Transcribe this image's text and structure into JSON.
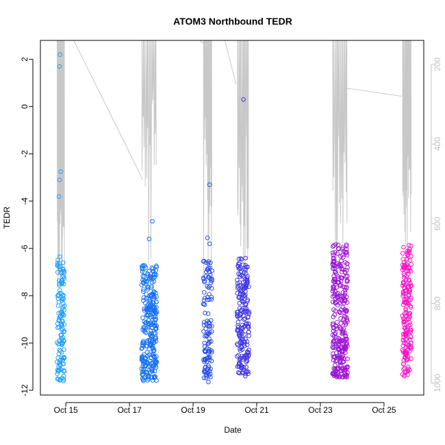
{
  "chart_data": {
    "type": "scatter",
    "title": "ATOM3 Northbound TEDR",
    "xlabel": "Date",
    "ylabel": "TEDR",
    "y2label": "",
    "x_tick_labels": [
      "Oct 15",
      "Oct 17",
      "Oct 19",
      "Oct 21",
      "Oct 23",
      "Oct 25"
    ],
    "x_tick_days": [
      15,
      17,
      19,
      21,
      23,
      25
    ],
    "xlim_days": [
      14.2,
      26.25
    ],
    "ylim": [
      -12.2,
      2.8
    ],
    "y_ticks": [
      -12,
      -10,
      -8,
      -6,
      -4,
      -2,
      0,
      2
    ],
    "y2lim": [
      1030,
      140
    ],
    "y2_ticks": [
      200,
      400,
      600,
      800,
      1000
    ],
    "grid": false,
    "legend": "none",
    "colors": {
      "gradient_start": "#1EA0FF",
      "gradient_mid1": "#1464F0",
      "gradient_mid2": "#5A14DC",
      "gradient_end": "#FF14C8",
      "pressure_line": "#c8c8c8",
      "axis": "#000000",
      "axis_right": "#c0c0c0"
    },
    "series": [
      {
        "role": "TEDR points",
        "clusters": [
          {
            "day_range": [
              14.72,
              14.96
            ],
            "n": 130,
            "y_range": [
              -11.7,
              -6.3
            ],
            "outliers": [
              [
                14.82,
                2.2
              ],
              [
                14.8,
                1.7
              ],
              [
                14.84,
                -2.75
              ],
              [
                14.8,
                -3.1
              ],
              [
                14.78,
                -3.8
              ]
            ]
          },
          {
            "day_range": [
              17.38,
              17.86
            ],
            "n": 280,
            "y_range": [
              -11.6,
              -6.7
            ],
            "outliers": [
              [
                17.72,
                -4.85
              ],
              [
                17.62,
                -5.6
              ]
            ]
          },
          {
            "day_range": [
              19.32,
              19.6
            ],
            "n": 120,
            "y_range": [
              -11.5,
              -6.5
            ],
            "outliers": [
              [
                19.52,
                -3.3
              ],
              [
                19.45,
                -5.55
              ],
              [
                19.52,
                -5.8
              ],
              [
                19.48,
                -11.65
              ]
            ]
          },
          {
            "day_range": [
              20.38,
              20.76
            ],
            "n": 200,
            "y_range": [
              -11.4,
              -6.4
            ],
            "outliers": [
              [
                20.58,
                0.3
              ]
            ]
          },
          {
            "day_range": [
              23.38,
              23.86
            ],
            "n": 300,
            "y_range": [
              -11.45,
              -5.8
            ],
            "outliers": []
          },
          {
            "day_range": [
              25.58,
              25.86
            ],
            "n": 190,
            "y_range": [
              -11.4,
              -5.8
            ],
            "outliers": [
              [
                25.82,
                -6.5
              ]
            ]
          }
        ]
      },
      {
        "role": "Pressure trace (right axis)",
        "segments": [
          {
            "type": "line",
            "points": [
              [
                15.25,
                140
              ],
              [
                17.3,
                470
              ],
              [
                17.4,
                490
              ]
            ]
          },
          {
            "type": "spikes",
            "day_range": [
              14.72,
              14.96
            ],
            "top": 140,
            "bottom": [
              520,
              760
            ]
          },
          {
            "type": "spikes",
            "day_range": [
              17.38,
              17.86
            ],
            "top": 140,
            "bottom": [
              240,
              770
            ]
          },
          {
            "type": "line",
            "points": [
              [
                19.2,
                140
              ],
              [
                19.35,
                150
              ]
            ]
          },
          {
            "type": "spikes",
            "day_range": [
              19.32,
              19.6
            ],
            "top": 140,
            "bottom": [
              330,
              770
            ]
          },
          {
            "type": "line",
            "points": [
              [
                20.0,
                140
              ],
              [
                20.35,
                250
              ]
            ]
          },
          {
            "type": "spikes",
            "day_range": [
              20.38,
              20.76
            ],
            "top": 140,
            "bottom": [
              260,
              760
            ]
          },
          {
            "type": "spikes",
            "day_range": [
              23.38,
              23.86
            ],
            "top": 140,
            "bottom": [
              380,
              700
            ]
          },
          {
            "type": "line",
            "points": [
              [
                23.82,
                260
              ],
              [
                25.55,
                280
              ]
            ]
          },
          {
            "type": "spikes",
            "day_range": [
              25.58,
              25.86
            ],
            "top": 140,
            "bottom": [
              430,
              700
            ]
          }
        ]
      }
    ]
  }
}
